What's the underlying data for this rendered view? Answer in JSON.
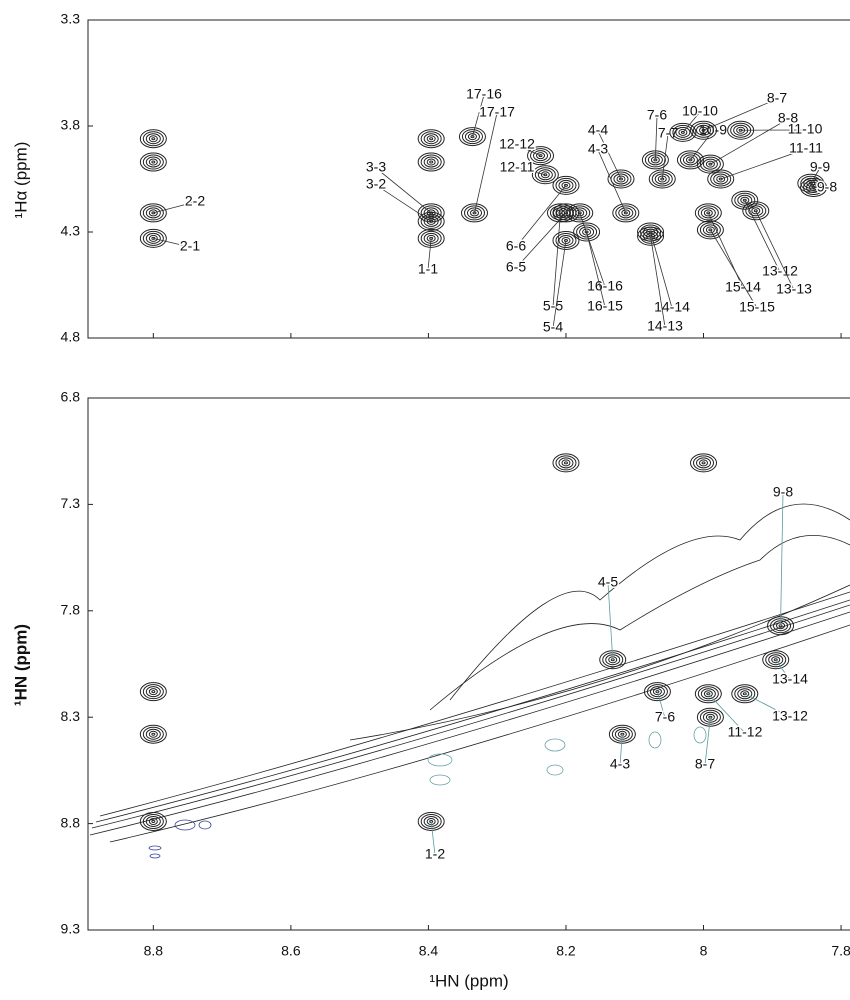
{
  "chart_data": [
    {
      "type": "contour",
      "y_label": "¹Hα (ppm)",
      "xlim": [
        8.895,
        7.787
      ],
      "ylim": [
        3.3,
        4.8
      ],
      "xticks": [
        8.8,
        8.6,
        8.4,
        8.2,
        8.0,
        7.8
      ],
      "yticks": [
        3.3,
        3.8,
        4.3,
        4.8
      ],
      "color": "#222222",
      "peaks": [
        {
          "label": null,
          "x": 8.8,
          "y": 3.86
        },
        {
          "label": null,
          "x": 8.8,
          "y": 3.97
        },
        {
          "label": "2-2",
          "x": 8.8,
          "y": 4.21
        },
        {
          "label": "2-1",
          "x": 8.8,
          "y": 4.33
        },
        {
          "label": null,
          "x": 8.396,
          "y": 3.86
        },
        {
          "label": null,
          "x": 8.396,
          "y": 3.97
        },
        {
          "label": "3-3",
          "x": 8.396,
          "y": 4.21
        },
        {
          "label": "3-2",
          "x": 8.396,
          "y": 4.25
        },
        {
          "label": "1-1",
          "x": 8.396,
          "y": 4.33
        },
        {
          "label": "17-16",
          "x": 8.336,
          "y": 3.85
        },
        {
          "label": "17-17",
          "x": 8.333,
          "y": 4.21
        },
        {
          "label": "12-12",
          "x": 8.237,
          "y": 3.94
        },
        {
          "label": "12-11",
          "x": 8.23,
          "y": 4.03
        },
        {
          "label": "6-6",
          "x": 8.2,
          "y": 4.08
        },
        {
          "label": "6-5",
          "x": 8.2,
          "y": 4.21
        },
        {
          "label": "5-5",
          "x": 8.208,
          "y": 4.21
        },
        {
          "label": "5-4",
          "x": 8.2,
          "y": 4.34
        },
        {
          "label": "16-16",
          "x": 8.18,
          "y": 4.21
        },
        {
          "label": "16-15",
          "x": 8.17,
          "y": 4.3
        },
        {
          "label": "4-4",
          "x": 8.12,
          "y": 4.05
        },
        {
          "label": "4-3",
          "x": 8.113,
          "y": 4.21
        },
        {
          "label": "7-6",
          "x": 8.07,
          "y": 3.96
        },
        {
          "label": "7-7",
          "x": 8.06,
          "y": 4.05
        },
        {
          "label": "14-14",
          "x": 8.077,
          "y": 4.3
        },
        {
          "label": "14-13",
          "x": 8.077,
          "y": 4.32
        },
        {
          "label": "10-10",
          "x": 8.03,
          "y": 3.83
        },
        {
          "label": "10-9",
          "x": 8.019,
          "y": 3.96
        },
        {
          "label": "8-7",
          "x": 8.0,
          "y": 3.82
        },
        {
          "label": "8-8",
          "x": 7.99,
          "y": 3.98
        },
        {
          "label": "11-10",
          "x": 7.946,
          "y": 3.82
        },
        {
          "label": "11-11",
          "x": 7.975,
          "y": 4.05
        },
        {
          "label": "9-9",
          "x": 7.844,
          "y": 4.07
        },
        {
          "label": "9-8",
          "x": 7.84,
          "y": 4.09
        },
        {
          "label": "13-12",
          "x": 7.94,
          "y": 4.15
        },
        {
          "label": "13-13",
          "x": 7.924,
          "y": 4.2
        },
        {
          "label": "15-14",
          "x": 7.993,
          "y": 4.21
        },
        {
          "label": "15-15",
          "x": 7.99,
          "y": 4.29
        }
      ]
    },
    {
      "type": "contour",
      "x_label": "¹HN (ppm)",
      "y_label": "¹HN (ppm)",
      "xlim": [
        8.895,
        7.787
      ],
      "ylim": [
        6.8,
        9.3
      ],
      "xticks": [
        8.8,
        8.6,
        8.4,
        8.2,
        8.0,
        7.8
      ],
      "yticks": [
        6.8,
        7.3,
        7.8,
        8.3,
        8.8,
        9.3
      ],
      "color": "#222222",
      "peaks": [
        {
          "label": null,
          "x": 8.2,
          "y": 7.105
        },
        {
          "label": null,
          "x": 8.0,
          "y": 7.105
        },
        {
          "label": null,
          "x": 8.8,
          "y": 8.18
        },
        {
          "label": null,
          "x": 8.8,
          "y": 8.38
        },
        {
          "label": null,
          "x": 8.8,
          "y": 8.79
        },
        {
          "label": "1-2",
          "x": 8.396,
          "y": 8.79
        },
        {
          "label": "4-3",
          "x": 8.118,
          "y": 8.38
        },
        {
          "label": "7-6",
          "x": 8.067,
          "y": 8.18
        },
        {
          "label": "11-12",
          "x": 7.993,
          "y": 8.19
        },
        {
          "label": "13-12",
          "x": 7.94,
          "y": 8.19
        },
        {
          "label": "8-7",
          "x": 7.99,
          "y": 8.3
        },
        {
          "label": "13-14",
          "x": 7.895,
          "y": 8.03
        },
        {
          "label": "9-8",
          "x": 7.888,
          "y": 7.87
        },
        {
          "label": "4-5",
          "x": 8.132,
          "y": 8.03
        }
      ]
    }
  ]
}
